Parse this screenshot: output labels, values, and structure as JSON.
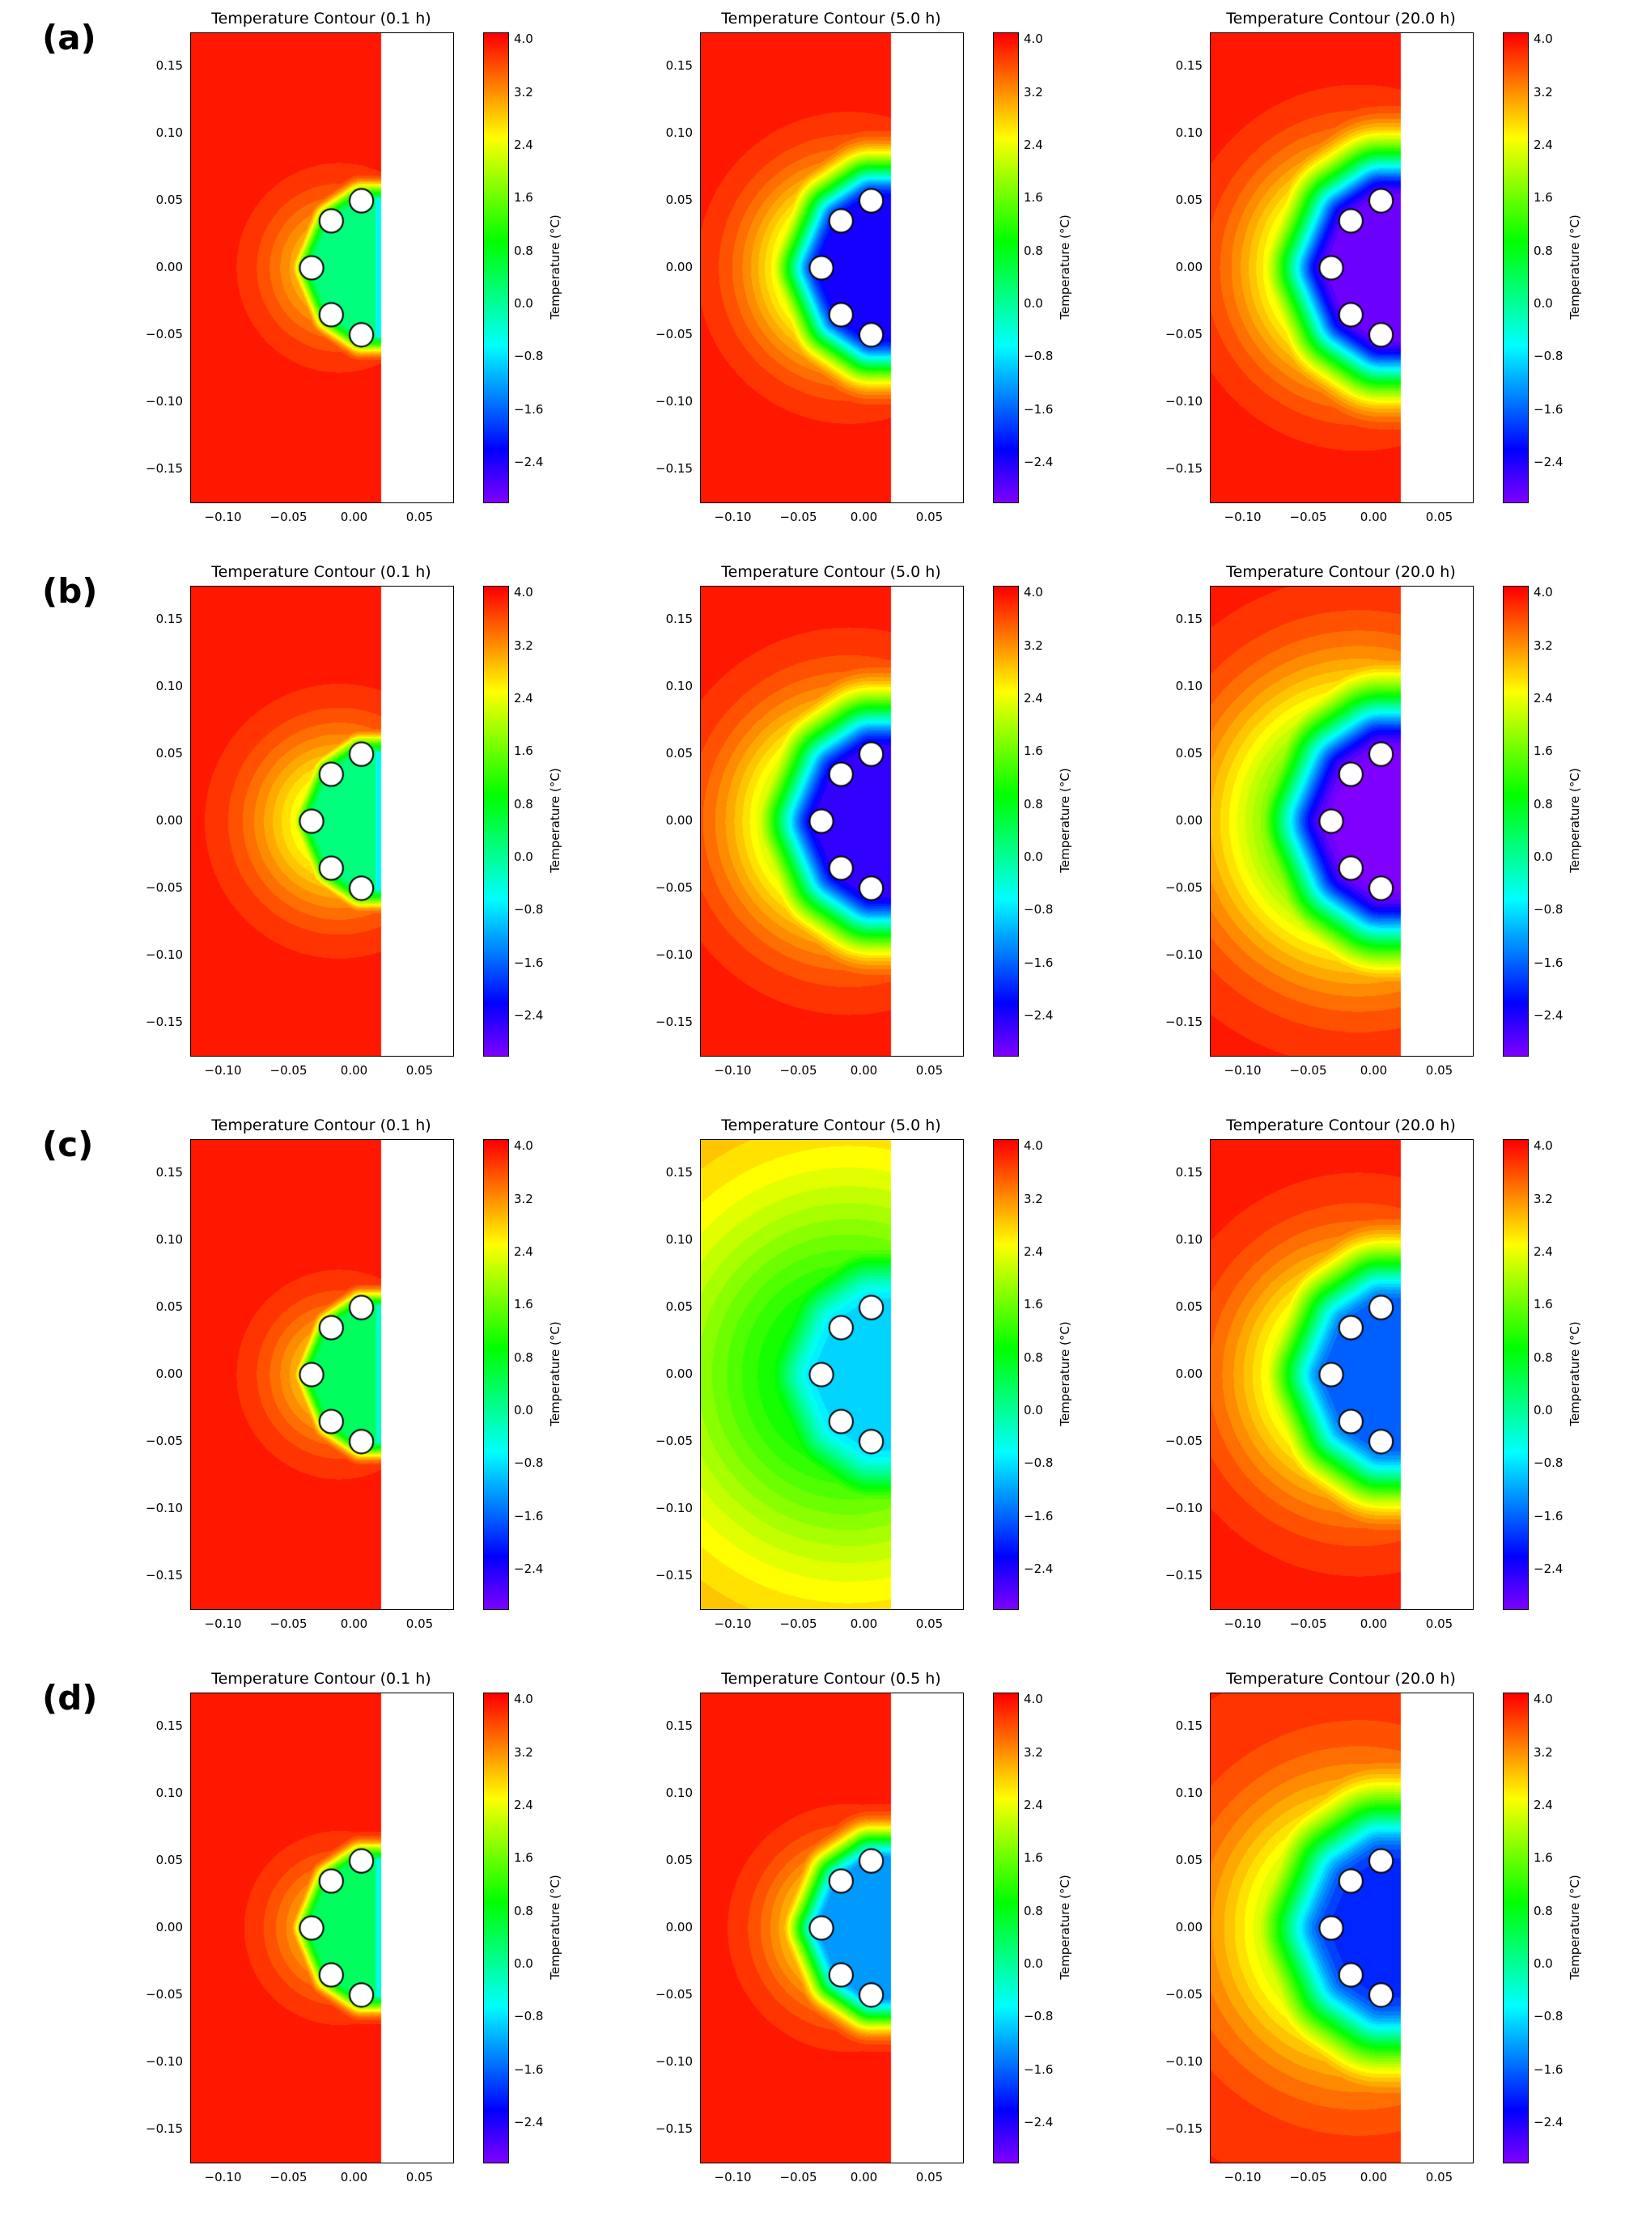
{
  "figure": {
    "background": "#ffffff",
    "rows": [
      {
        "label": "(a)",
        "plots": [
          0,
          1,
          2
        ]
      },
      {
        "label": "(b)",
        "plots": [
          3,
          4,
          5
        ]
      },
      {
        "label": "(c)",
        "plots": [
          6,
          7,
          8
        ]
      },
      {
        "label": "(d)",
        "plots": [
          9,
          10,
          11
        ]
      }
    ]
  },
  "chart_data": {
    "type": "heatmap",
    "subtype": "filled-contour-grid",
    "shared": {
      "xlim": [
        -0.125,
        0.075
      ],
      "ylim": [
        -0.175,
        0.175
      ],
      "mask_x": 0.02,
      "x_tick_labels": [
        "−0.10",
        "−0.05",
        "0.00",
        "0.05"
      ],
      "x_tick_values": [
        -0.1,
        -0.05,
        0.0,
        0.05
      ],
      "y_tick_labels": [
        "0.15",
        "0.10",
        "0.05",
        "0.00",
        "−0.05",
        "−0.10",
        "−0.15"
      ],
      "y_tick_values": [
        0.15,
        0.1,
        0.05,
        0.0,
        -0.05,
        -0.1,
        -0.15
      ],
      "colorbar": {
        "label": "Temperature (°C)",
        "tick_labels": [
          "4.0",
          "3.2",
          "2.4",
          "1.6",
          "0.8",
          "0.0",
          "−0.8",
          "−1.6",
          "−2.4"
        ],
        "tick_values": [
          4.0,
          3.2,
          2.4,
          1.6,
          0.8,
          0.0,
          -0.8,
          -1.6,
          -2.4
        ],
        "vmin": -3.0,
        "vmax": 4.1,
        "colormap": "rainbow"
      },
      "electrodes": [
        [
          0.005,
          0.05
        ],
        [
          -0.018,
          0.035
        ],
        [
          -0.033,
          0.0
        ],
        [
          -0.018,
          -0.035
        ],
        [
          0.005,
          -0.05
        ]
      ],
      "electrode_radius": 0.009,
      "electrode_fill": "#ffffff",
      "electrode_edge": "#000000",
      "cold_polygon": [
        [
          0.018,
          0.05
        ],
        [
          0.005,
          0.05
        ],
        [
          -0.018,
          0.035
        ],
        [
          -0.033,
          0.0
        ],
        [
          -0.018,
          -0.035
        ],
        [
          0.005,
          -0.05
        ],
        [
          0.018,
          -0.05
        ]
      ],
      "cold_center": [
        -0.012,
        0.0
      ],
      "edge_x": 0.018,
      "edge_half_height": 0.05,
      "contour_step": 0.18
    },
    "plots": [
      {
        "row": "a",
        "time_h": 0.1,
        "title": "Temperature Contour (0.1 h)",
        "ambient": 4.0,
        "core": 0.2,
        "sigma": 0.012,
        "edge_core": -0.7,
        "edge_sigma": 0.006,
        "broad_depth": 1.5,
        "broad_sigma": 0.05
      },
      {
        "row": "a",
        "time_h": 5.0,
        "title": "Temperature Contour (5.0 h)",
        "ambient": 4.0,
        "core": -2.3,
        "sigma": 0.03,
        "edge_core": -2.2,
        "edge_sigma": 0.02,
        "broad_depth": 3.2,
        "broad_sigma": 0.065
      },
      {
        "row": "a",
        "time_h": 20.0,
        "title": "Temperature Contour (20.0 h)",
        "ambient": 4.0,
        "core": -2.9,
        "sigma": 0.04,
        "edge_core": -2.8,
        "edge_sigma": 0.026,
        "broad_depth": 3.6,
        "broad_sigma": 0.075
      },
      {
        "row": "b",
        "time_h": 0.1,
        "title": "Temperature Contour (0.1 h)",
        "ambient": 4.0,
        "core": 0.2,
        "sigma": 0.013,
        "edge_core": -0.7,
        "edge_sigma": 0.006,
        "broad_depth": 2.0,
        "broad_sigma": 0.062
      },
      {
        "row": "b",
        "time_h": 5.0,
        "title": "Temperature Contour (5.0 h)",
        "ambient": 4.0,
        "core": -2.6,
        "sigma": 0.04,
        "edge_core": -2.5,
        "edge_sigma": 0.028,
        "broad_depth": 3.4,
        "broad_sigma": 0.08
      },
      {
        "row": "b",
        "time_h": 20.0,
        "title": "Temperature Contour (20.0 h)",
        "ambient": 4.0,
        "core": -3.0,
        "sigma": 0.048,
        "edge_core": -2.9,
        "edge_sigma": 0.032,
        "broad_depth": 3.7,
        "broad_sigma": 0.1
      },
      {
        "row": "c",
        "time_h": 0.1,
        "title": "Temperature Contour (0.1 h)",
        "ambient": 4.0,
        "core": 0.4,
        "sigma": 0.011,
        "edge_core": -0.4,
        "edge_sigma": 0.006,
        "broad_depth": 1.5,
        "broad_sigma": 0.05
      },
      {
        "row": "c",
        "time_h": 5.0,
        "title": "Temperature Contour (5.0 h)",
        "ambient": 3.2,
        "core": -0.9,
        "sigma": 0.045,
        "edge_core": -0.8,
        "edge_sigma": 0.03,
        "broad_depth": 2.6,
        "broad_sigma": 0.14
      },
      {
        "row": "c",
        "time_h": 20.0,
        "title": "Temperature Contour (20.0 h)",
        "ambient": 4.0,
        "core": -1.7,
        "sigma": 0.042,
        "edge_core": -1.6,
        "edge_sigma": 0.028,
        "broad_depth": 3.0,
        "broad_sigma": 0.085
      },
      {
        "row": "d",
        "time_h": 0.1,
        "title": "Temperature Contour (0.1 h)",
        "ambient": 4.0,
        "core": 0.3,
        "sigma": 0.012,
        "edge_core": -0.6,
        "edge_sigma": 0.006,
        "broad_depth": 1.4,
        "broad_sigma": 0.047
      },
      {
        "row": "d",
        "time_h": 0.5,
        "title": "Temperature Contour (0.5 h)",
        "ambient": 4.0,
        "core": -1.3,
        "sigma": 0.022,
        "edge_core": -1.2,
        "edge_sigma": 0.014,
        "broad_depth": 2.2,
        "broad_sigma": 0.055
      },
      {
        "row": "d",
        "time_h": 20.0,
        "title": "Temperature Contour (20.0 h)",
        "ambient": 3.9,
        "core": -1.9,
        "sigma": 0.048,
        "edge_core": -1.8,
        "edge_sigma": 0.03,
        "broad_depth": 3.0,
        "broad_sigma": 0.095
      }
    ]
  }
}
